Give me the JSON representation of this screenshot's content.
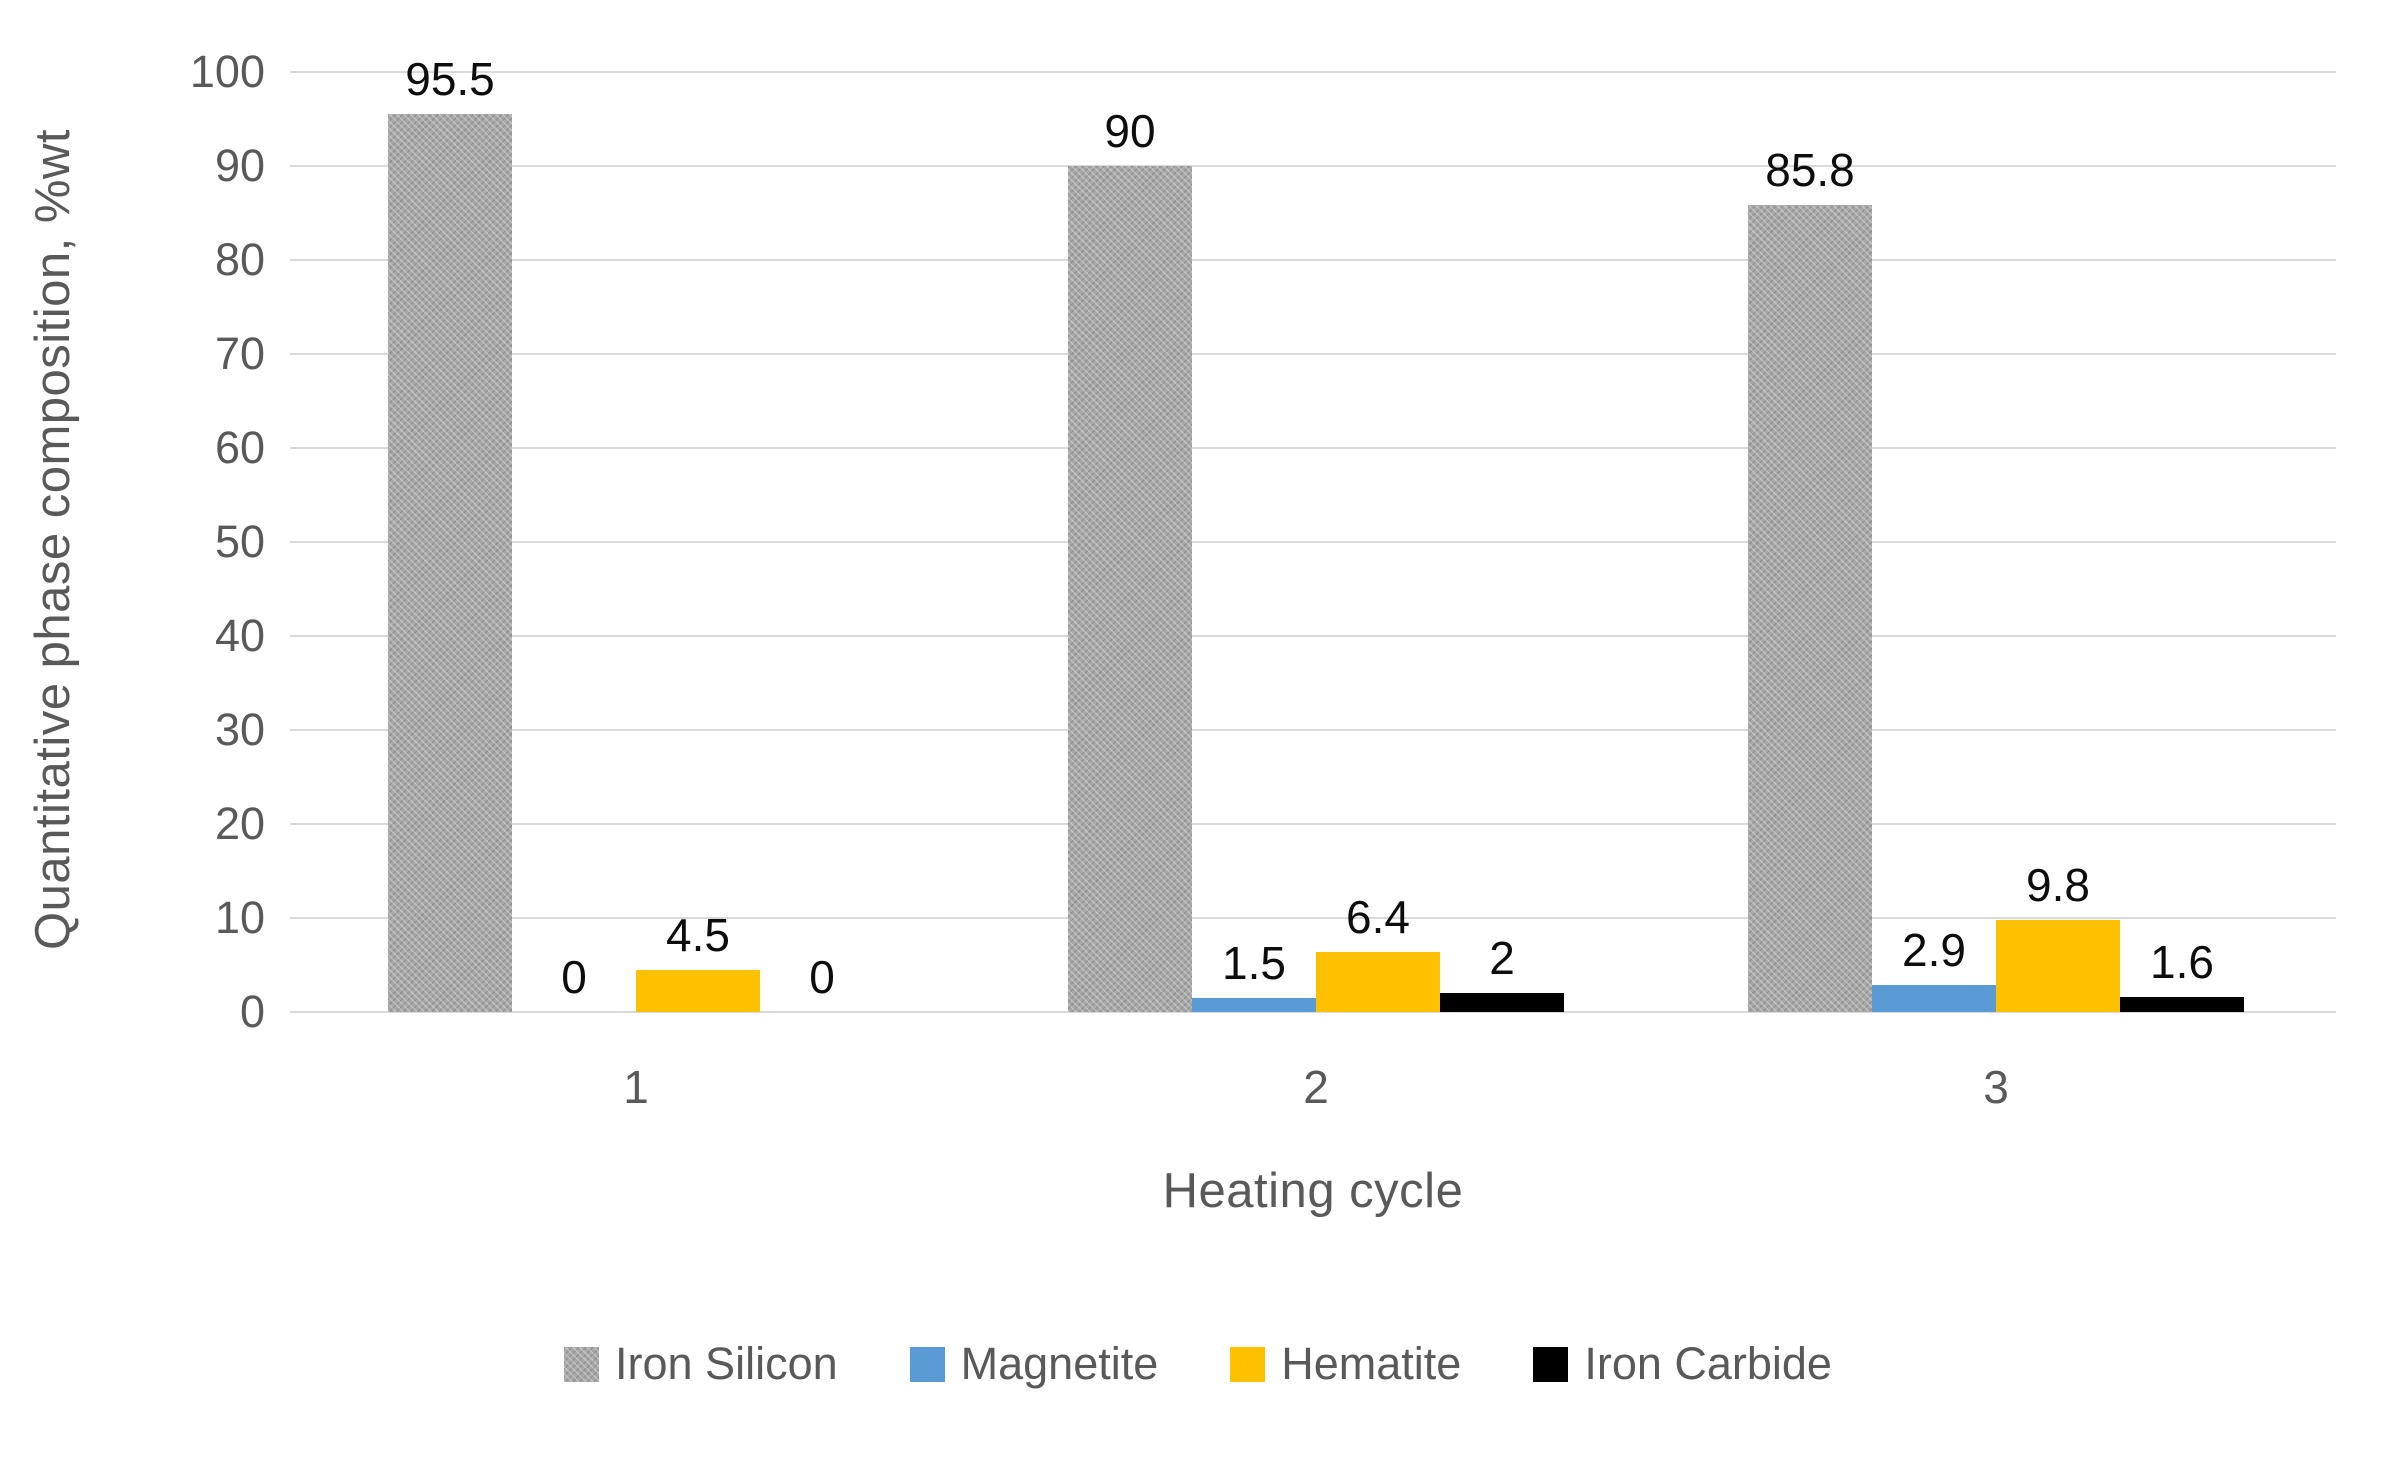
{
  "chart_data": {
    "type": "bar",
    "title": "",
    "xlabel": "Heating cycle",
    "ylabel": "Quantitative phase composition, %wt",
    "categories": [
      "1",
      "2",
      "3"
    ],
    "series": [
      {
        "name": "Iron Silicon",
        "color": "#a8a8a8",
        "pattern": true,
        "values": [
          95.5,
          90,
          85.8
        ],
        "labels": [
          "95.5",
          "90",
          "85.8"
        ]
      },
      {
        "name": "Magnetite",
        "color": "#5b9bd5",
        "pattern": false,
        "values": [
          0,
          1.5,
          2.9
        ],
        "labels": [
          "0",
          "1.5",
          "2.9"
        ]
      },
      {
        "name": "Hematite",
        "color": "#ffc000",
        "pattern": false,
        "values": [
          4.5,
          6.4,
          9.8
        ],
        "labels": [
          "4.5",
          "6.4",
          "9.8"
        ]
      },
      {
        "name": "Iron Carbide",
        "color": "#000000",
        "pattern": false,
        "values": [
          0,
          2,
          1.6
        ],
        "labels": [
          "0",
          "2",
          "1.6"
        ]
      }
    ],
    "ylim": [
      0,
      100
    ],
    "ytick_step": 10,
    "ytick_labels": [
      "0",
      "10",
      "20",
      "30",
      "40",
      "50",
      "60",
      "70",
      "80",
      "90",
      "100"
    ],
    "grid": true,
    "legend_position": "bottom",
    "colors": {
      "gridline": "#d9d9d9",
      "axis_text": "#595959",
      "data_label_text": "#0d0d0d",
      "background": "#ffffff"
    }
  }
}
